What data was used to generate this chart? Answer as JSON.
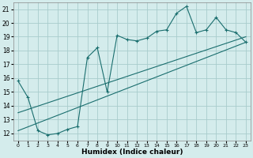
{
  "xlabel": "Humidex (Indice chaleur)",
  "background_color": "#d4ecec",
  "grid_color": "#a8cccc",
  "line_color": "#1a6e6e",
  "xlim": [
    -0.5,
    23.5
  ],
  "ylim": [
    11.5,
    21.5
  ],
  "yticks": [
    12,
    13,
    14,
    15,
    16,
    17,
    18,
    19,
    20,
    21
  ],
  "xticks": [
    0,
    1,
    2,
    3,
    4,
    5,
    6,
    7,
    8,
    9,
    10,
    11,
    12,
    13,
    14,
    15,
    16,
    17,
    18,
    19,
    20,
    21,
    22,
    23
  ],
  "line1_x": [
    0,
    1,
    2,
    3,
    4,
    5,
    6,
    7,
    8,
    9,
    10,
    11,
    12,
    13,
    14,
    15,
    16,
    17,
    18,
    19,
    20,
    21,
    22,
    23
  ],
  "line1_y": [
    15.8,
    14.6,
    12.2,
    11.9,
    12.0,
    12.3,
    12.5,
    17.5,
    18.2,
    15.0,
    19.1,
    18.8,
    18.7,
    18.9,
    19.4,
    19.5,
    20.7,
    21.2,
    19.3,
    19.5,
    20.4,
    19.5,
    19.3,
    18.6
  ],
  "line2_x": [
    0,
    23
  ],
  "line2_y": [
    12.2,
    18.6
  ],
  "line3_x": [
    0,
    23
  ],
  "line3_y": [
    13.5,
    19.0
  ]
}
